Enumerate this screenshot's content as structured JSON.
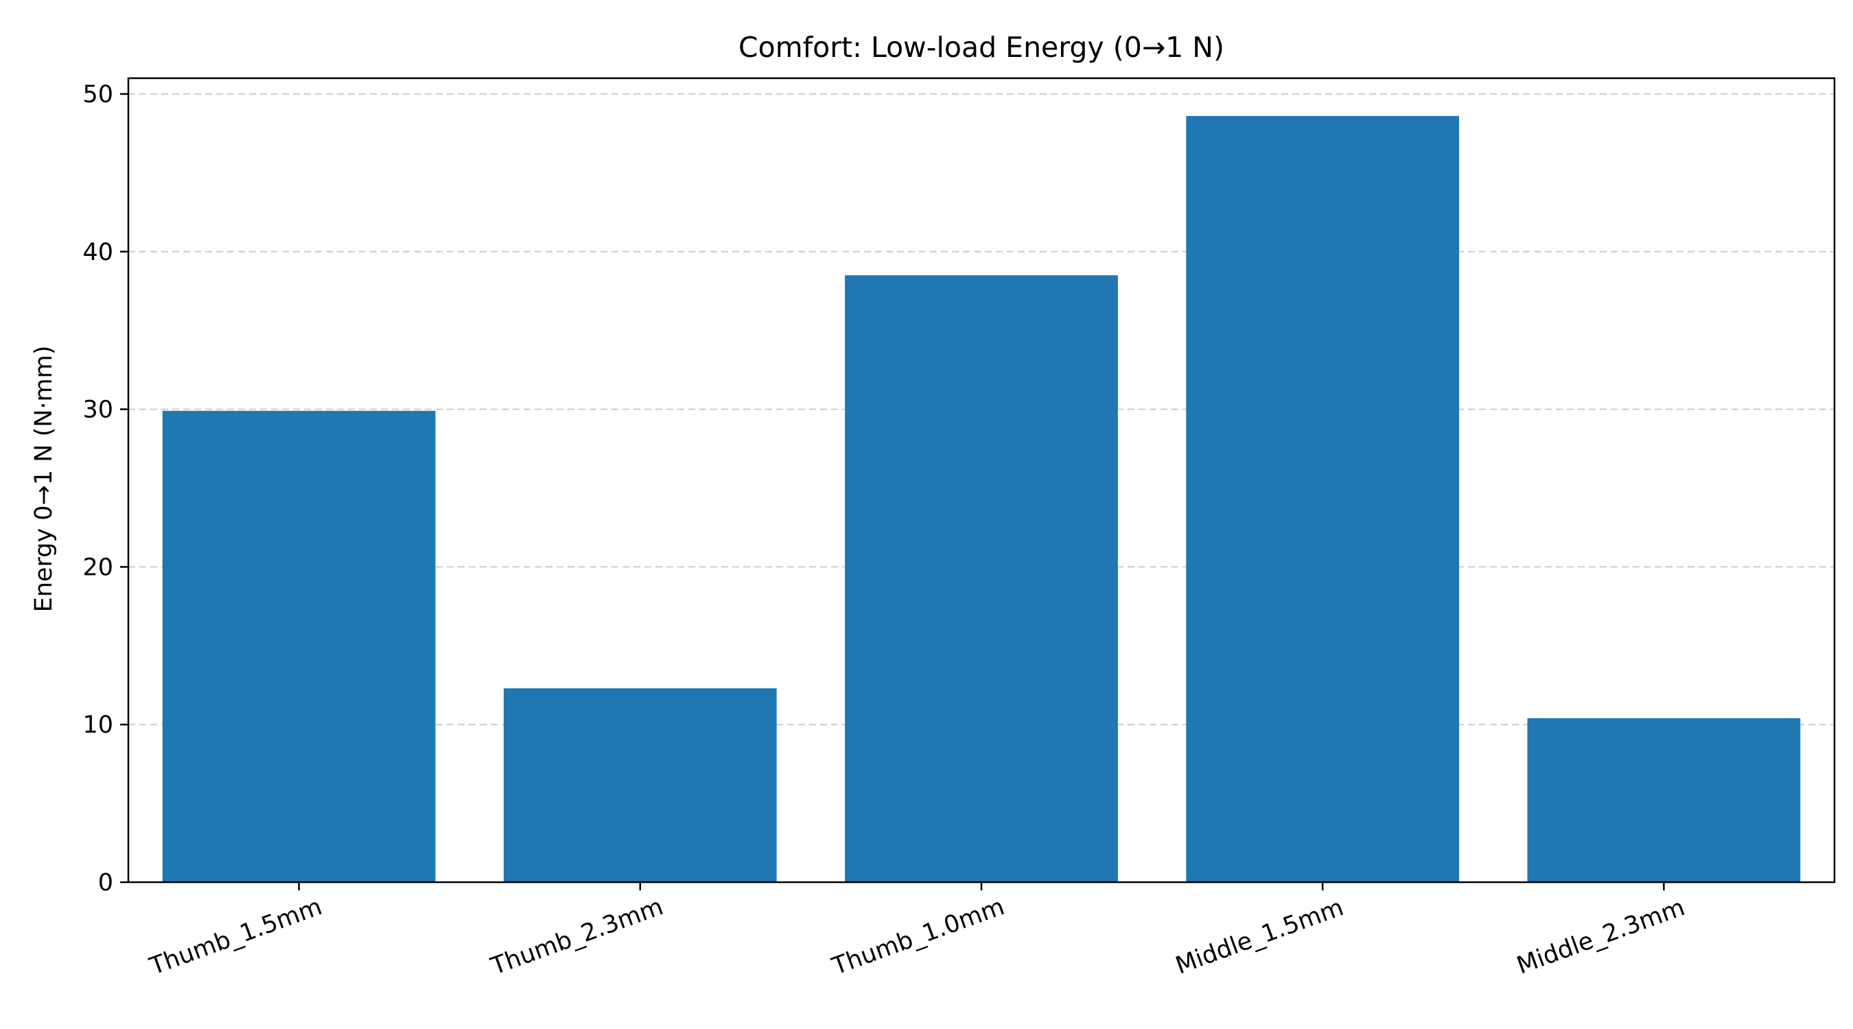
{
  "chart_data": {
    "type": "bar",
    "title": "Comfort: Low-load Energy (0→1 N)",
    "xlabel": "",
    "ylabel": "Energy 0→1 N (N·mm)",
    "categories": [
      "Thumb_1.5mm",
      "Thumb_2.3mm",
      "Thumb_1.0mm",
      "Middle_1.5mm",
      "Middle_2.3mm"
    ],
    "values": [
      29.9,
      12.3,
      38.5,
      48.6,
      10.4
    ],
    "ylim": [
      0,
      51.0
    ],
    "yticks": [
      0,
      10,
      20,
      30,
      40,
      50
    ],
    "grid": {
      "axis": "y",
      "style": "dashed",
      "color": "#cccccc"
    },
    "bar_color": "#1f77b4",
    "x_tick_rotation": -20
  }
}
